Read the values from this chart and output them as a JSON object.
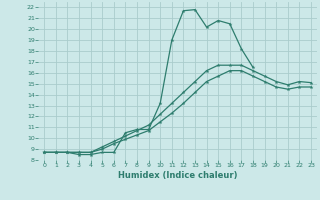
{
  "xlabel": "Humidex (Indice chaleur)",
  "bg_color": "#cce8e8",
  "grid_color": "#aacccc",
  "line_color": "#2e7d6e",
  "xlim": [
    -0.5,
    23.5
  ],
  "ylim": [
    8,
    22.5
  ],
  "xticks": [
    0,
    1,
    2,
    3,
    4,
    5,
    6,
    7,
    8,
    9,
    10,
    11,
    12,
    13,
    14,
    15,
    16,
    17,
    18,
    19,
    20,
    21,
    22,
    23
  ],
  "yticks": [
    8,
    9,
    10,
    11,
    12,
    13,
    14,
    15,
    16,
    17,
    18,
    19,
    20,
    21,
    22
  ],
  "line1_x": [
    0,
    1,
    2,
    3,
    4,
    5,
    6,
    7,
    8,
    9,
    10,
    11,
    12,
    13,
    14,
    15,
    16,
    17,
    18,
    19,
    20,
    21,
    22,
    23
  ],
  "line1_y": [
    8.7,
    8.7,
    8.7,
    8.7,
    8.7,
    9.2,
    9.7,
    10.2,
    10.7,
    11.2,
    12.2,
    13.2,
    14.2,
    15.2,
    16.2,
    16.7,
    16.7,
    16.7,
    16.2,
    15.7,
    15.2,
    14.9,
    15.2,
    15.1
  ],
  "line2_x": [
    0,
    1,
    2,
    3,
    4,
    5,
    6,
    7,
    8,
    9,
    10,
    11,
    12,
    13,
    14,
    15,
    16,
    17,
    18
  ],
  "line2_y": [
    8.7,
    8.7,
    8.7,
    8.5,
    8.5,
    8.7,
    8.7,
    10.5,
    10.8,
    10.8,
    13.2,
    19.0,
    21.7,
    21.8,
    20.2,
    20.8,
    20.5,
    18.2,
    16.5
  ],
  "line3_x": [
    0,
    1,
    2,
    3,
    4,
    5,
    6,
    7,
    8,
    9,
    10,
    11,
    12,
    13,
    14,
    15,
    16,
    17,
    18,
    19,
    20,
    21,
    22,
    23
  ],
  "line3_y": [
    8.7,
    8.7,
    8.7,
    8.7,
    8.7,
    9.0,
    9.5,
    9.9,
    10.3,
    10.7,
    11.5,
    12.3,
    13.2,
    14.2,
    15.2,
    15.7,
    16.2,
    16.2,
    15.7,
    15.2,
    14.7,
    14.5,
    14.7,
    14.7
  ]
}
